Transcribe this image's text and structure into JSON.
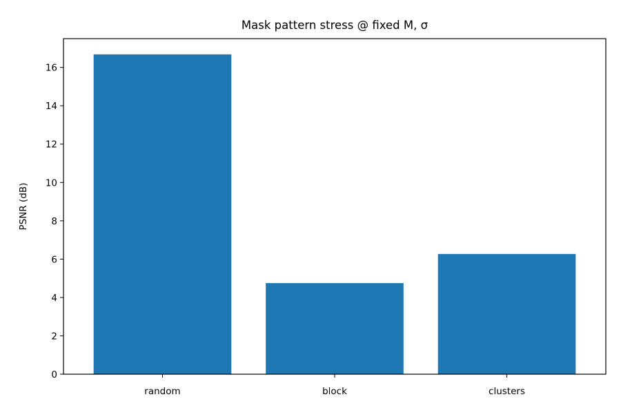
{
  "chart_data": {
    "type": "bar",
    "title": "Mask pattern stress @ fixed M, σ",
    "xlabel": "",
    "ylabel": "PSNR (dB)",
    "categories": [
      "random",
      "block",
      "clusters"
    ],
    "values": [
      16.68,
      4.75,
      6.27
    ],
    "ylim": [
      0,
      17.5
    ],
    "yticks": [
      0,
      2,
      4,
      6,
      8,
      10,
      12,
      14,
      16
    ],
    "bar_color": "#1f77b4",
    "grid": false,
    "legend": "none"
  }
}
